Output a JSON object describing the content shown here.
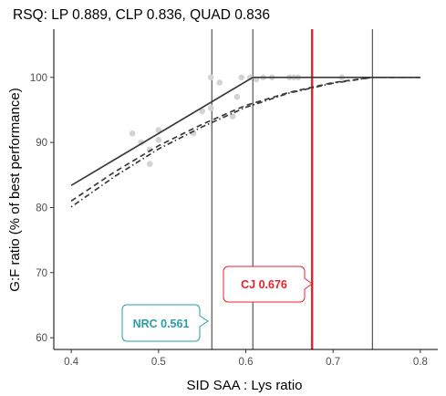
{
  "chart_data": {
    "type": "scatter",
    "title": "RSQ: LP 0.889, CLP 0.836, QUAD 0.836",
    "xlabel": "SID SAA : Lys ratio",
    "ylabel": "G:F ratio (% of best performance)",
    "xlim": [
      0.38,
      0.82
    ],
    "ylim": [
      58.2,
      107.4
    ],
    "x_ticks": [
      0.4,
      0.5,
      0.6,
      0.7,
      0.8
    ],
    "x_tick_labels": [
      "0.4",
      "0.5",
      "0.6",
      "0.7",
      "0.8"
    ],
    "y_ticks": [
      60,
      70,
      80,
      90,
      100
    ],
    "y_tick_labels": [
      "60",
      "70",
      "80",
      "90",
      "100"
    ],
    "grid": false,
    "points_color": "#d3d3d3",
    "points": [
      {
        "x": 0.47,
        "y": 91.4
      },
      {
        "x": 0.48,
        "y": 90.0
      },
      {
        "x": 0.49,
        "y": 86.7
      },
      {
        "x": 0.49,
        "y": 88.9
      },
      {
        "x": 0.5,
        "y": 90.4
      },
      {
        "x": 0.5,
        "y": 91.9
      },
      {
        "x": 0.54,
        "y": 91.4
      },
      {
        "x": 0.55,
        "y": 94.8
      },
      {
        "x": 0.56,
        "y": 95.3
      },
      {
        "x": 0.56,
        "y": 100.0
      },
      {
        "x": 0.57,
        "y": 99.2
      },
      {
        "x": 0.585,
        "y": 94.0
      },
      {
        "x": 0.59,
        "y": 97.0
      },
      {
        "x": 0.595,
        "y": 100.0
      },
      {
        "x": 0.605,
        "y": 100.0
      },
      {
        "x": 0.612,
        "y": 99.7
      },
      {
        "x": 0.62,
        "y": 100.0
      },
      {
        "x": 0.63,
        "y": 100.0
      },
      {
        "x": 0.65,
        "y": 100.0
      },
      {
        "x": 0.655,
        "y": 100.0
      },
      {
        "x": 0.66,
        "y": 100.0
      },
      {
        "x": 0.71,
        "y": 100.0
      }
    ],
    "lines": {
      "lp": {
        "style": "solid",
        "color": "#3a3a3a",
        "points": [
          [
            0.4,
            83.4
          ],
          [
            0.608,
            100.0
          ],
          [
            0.8,
            100.0
          ]
        ]
      },
      "quad": {
        "style": "dashed",
        "color": "#3a3a3a",
        "points": [
          [
            0.4,
            81.0
          ],
          [
            0.45,
            85.5
          ],
          [
            0.5,
            89.5
          ],
          [
            0.55,
            92.8
          ],
          [
            0.6,
            95.7
          ],
          [
            0.65,
            97.7
          ],
          [
            0.7,
            99.2
          ],
          [
            0.745,
            100.0
          ],
          [
            0.8,
            100.0
          ]
        ]
      },
      "clp": {
        "style": "dotdash",
        "color": "#3a3a3a",
        "points": [
          [
            0.4,
            80.1
          ],
          [
            0.45,
            84.8
          ],
          [
            0.5,
            89.0
          ],
          [
            0.55,
            92.4
          ],
          [
            0.6,
            95.4
          ],
          [
            0.65,
            97.6
          ],
          [
            0.7,
            99.1
          ],
          [
            0.745,
            100.0
          ],
          [
            0.8,
            100.0
          ]
        ]
      }
    },
    "vlines": [
      {
        "x": 0.561,
        "color": "#000000",
        "width": 0.8
      },
      {
        "x": 0.608,
        "color": "#000000",
        "width": 0.8
      },
      {
        "x": 0.745,
        "color": "#000000",
        "width": 0.8
      },
      {
        "x": 0.676,
        "color": "#e8212d",
        "width": 2.4
      }
    ],
    "annotations": [
      {
        "text": "NRC 0.561",
        "color": "#2a9ea3"
      },
      {
        "text": "CJ 0.676",
        "color": "#e8212d"
      }
    ]
  }
}
